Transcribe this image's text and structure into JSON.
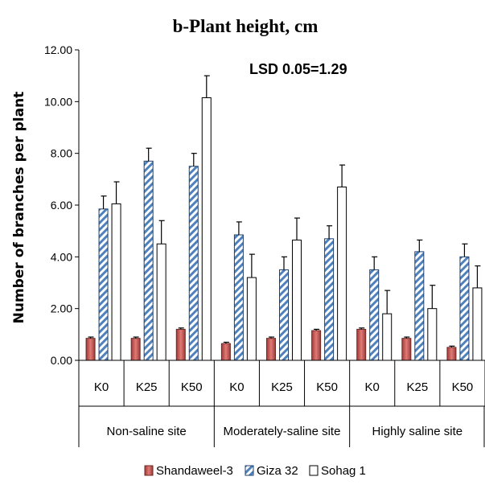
{
  "chart_data": {
    "type": "bar",
    "title": "b-Plant height, cm",
    "ylabel": "Number of branches per plant",
    "annotation": "LSD 0.05=1.29",
    "ylim": [
      0,
      12
    ],
    "y_ticks": [
      "0.00",
      "2.00",
      "4.00",
      "6.00",
      "8.00",
      "10.00",
      "12.00"
    ],
    "categories": [
      "K0",
      "K25",
      "K50",
      "K0",
      "K25",
      "K50",
      "K0",
      "K25",
      "K50"
    ],
    "groups": [
      {
        "label": "Non-saline site",
        "span": 3
      },
      {
        "label": "Moderately-saline site",
        "span": 3
      },
      {
        "label": "Highly saline site",
        "span": 3
      }
    ],
    "series": [
      {
        "name": "Shandaweel-3",
        "style": "solid",
        "color": "#c0504d",
        "values": [
          0.85,
          0.85,
          1.2,
          0.65,
          0.85,
          1.15,
          1.2,
          0.85,
          0.5
        ],
        "errors": [
          0.05,
          0.05,
          0.05,
          0.05,
          0.05,
          0.05,
          0.05,
          0.05,
          0.05
        ]
      },
      {
        "name": "Giza 32",
        "style": "hatched",
        "color": "#4f81bd",
        "values": [
          5.85,
          7.7,
          7.5,
          4.85,
          3.5,
          4.7,
          3.5,
          4.2,
          4.0
        ],
        "errors": [
          0.5,
          0.5,
          0.5,
          0.5,
          0.5,
          0.5,
          0.5,
          0.45,
          0.5
        ]
      },
      {
        "name": "Sohag 1",
        "style": "outline",
        "color": "#ffffff",
        "values": [
          6.05,
          4.5,
          10.15,
          3.2,
          4.65,
          6.7,
          1.8,
          2.0,
          2.8
        ],
        "errors": [
          0.85,
          0.9,
          0.85,
          0.9,
          0.85,
          0.85,
          0.9,
          0.9,
          0.85
        ]
      }
    ],
    "legend_position": "bottom",
    "grid": false
  }
}
